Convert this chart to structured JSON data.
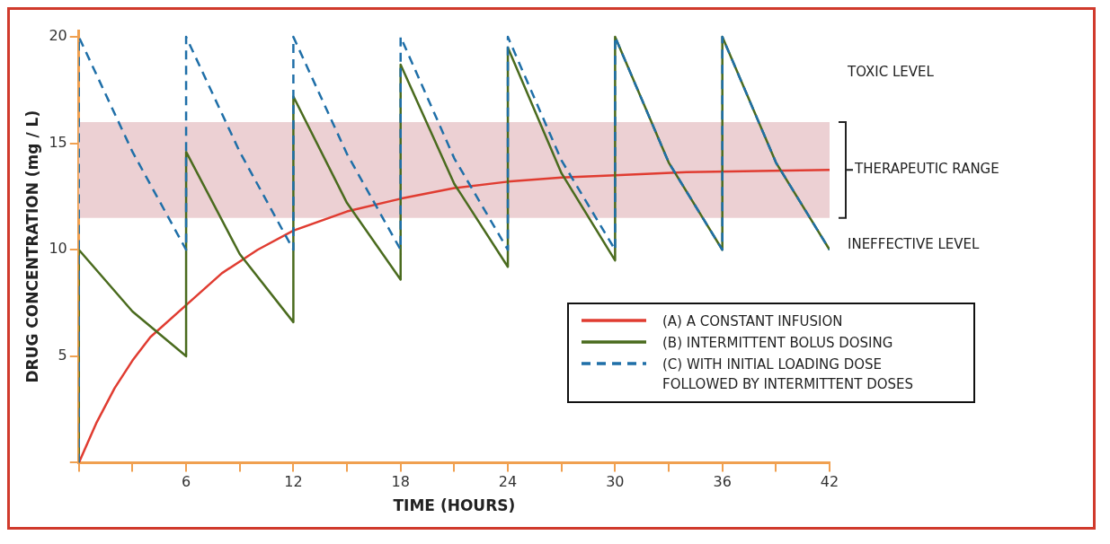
{
  "chart_data": {
    "type": "line",
    "xlabel": "TIME (HOURS)",
    "ylabel": "DRUG CONCENTRATION (mg / L)",
    "xlim": [
      0,
      42
    ],
    "ylim": [
      0,
      20.3
    ],
    "xticks": [
      {
        "value": 0,
        "label": null
      },
      {
        "value": 3,
        "label": null
      },
      6,
      {
        "value": 9,
        "label": null
      },
      12,
      {
        "value": 15,
        "label": null
      },
      18,
      {
        "value": 21,
        "label": null
      },
      24,
      {
        "value": 27,
        "label": null
      },
      30,
      {
        "value": 33,
        "label": null
      },
      36,
      {
        "value": 39,
        "label": null
      },
      42
    ],
    "yticks": [
      {
        "value": 0,
        "label": null
      },
      5,
      10,
      15,
      20
    ],
    "marker": "none",
    "legend": "bottom right",
    "bands": [
      {
        "axis": "y",
        "from": 11.5,
        "to": 16,
        "label": "THERAPEUTIC RANGE",
        "color": "#ecd0d3"
      }
    ],
    "annotations": [
      "TOXIC LEVEL",
      "INEFFECTIVE LEVEL"
    ],
    "series": [
      {
        "name": "(A) A CONSTANT INFUSION",
        "color": "#e03c31",
        "line_style": "solid",
        "x": [
          0,
          1,
          2,
          3,
          4,
          6,
          8,
          10,
          12,
          15,
          18,
          21,
          24,
          27,
          30,
          34,
          38,
          42
        ],
        "values": [
          0,
          1.9,
          3.5,
          4.8,
          5.9,
          7.4,
          8.9,
          10,
          10.9,
          11.8,
          12.4,
          12.9,
          13.2,
          13.4,
          13.5,
          13.65,
          13.7,
          13.75
        ]
      },
      {
        "name": "(B) INTERMITTENT BOLUS DOSING",
        "color": "#4a6b1e",
        "line_style": "solid",
        "x": [
          0,
          0,
          3,
          6,
          6,
          9,
          12,
          12,
          15,
          18,
          18,
          21,
          24,
          24,
          27,
          30,
          30,
          33,
          36,
          36,
          39,
          42
        ],
        "values": [
          0,
          10,
          7.1,
          5,
          14.6,
          9.8,
          6.6,
          17.2,
          12.2,
          8.6,
          18.7,
          13.1,
          9.2,
          19.5,
          13.6,
          9.5,
          20,
          14.1,
          10,
          20,
          14.1,
          10
        ]
      },
      {
        "name": "(C) WITH INITIAL LOADING DOSE FOLLOWED BY INTERMITTENT DOSES",
        "color": "#1f6fa8",
        "line_style": "dashed",
        "x": [
          0,
          0,
          3,
          6,
          6,
          9,
          12,
          12,
          15,
          18,
          18,
          21,
          24,
          24,
          27,
          30,
          30,
          33,
          36,
          36,
          39,
          42
        ],
        "values": [
          0,
          20,
          14.6,
          10,
          20,
          14.6,
          10,
          20,
          14.5,
          10,
          20,
          14.3,
          10,
          20,
          14.2,
          10,
          20,
          14.1,
          10,
          20,
          14.1,
          10
        ]
      }
    ]
  }
}
